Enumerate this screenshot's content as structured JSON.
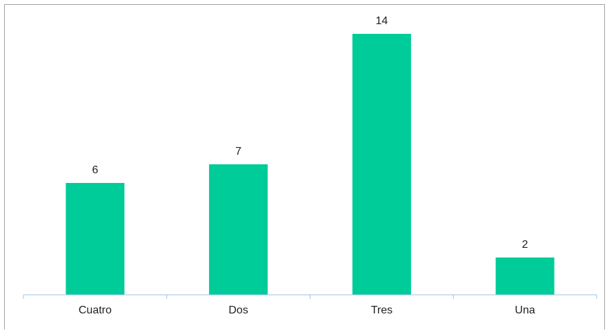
{
  "chart_data": {
    "type": "bar",
    "categories": [
      "Cuatro",
      "Dos",
      "Tres",
      "Una"
    ],
    "values": [
      6,
      7,
      14,
      2
    ],
    "data_labels": [
      "6",
      "7",
      "14",
      "2"
    ],
    "title": "",
    "xlabel": "",
    "ylabel": "",
    "ylim": [
      0,
      15.0
    ],
    "grid": false,
    "legend": "none",
    "bar_color": "#00CC99",
    "axis_color": "#9DC3E6"
  }
}
